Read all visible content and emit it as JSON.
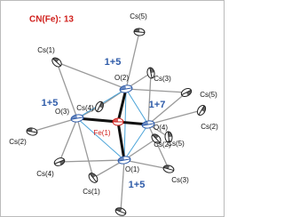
{
  "title": "CN(Fe): 13",
  "atoms": [
    {
      "label": "Fe(1)"
    },
    {
      "label": "O(1)"
    },
    {
      "label": "O(2)"
    },
    {
      "label": "O(3)"
    },
    {
      "label": "O(4)"
    },
    {
      "label": "Cs(5)"
    },
    {
      "label": "Cs(1)"
    },
    {
      "label": "Cs(3)"
    },
    {
      "label": "Cs(4)"
    },
    {
      "label": "Cs(5)"
    },
    {
      "label": "Cs(2)"
    },
    {
      "label": "Cs(2)"
    },
    {
      "label": "Cs(5)"
    },
    {
      "label": "Cs(2)"
    },
    {
      "label": "Cs(4)"
    },
    {
      "label": "Cs(3)"
    },
    {
      "label": "Cs(1)"
    }
  ],
  "bond_counts": [
    "1+5",
    "1+5",
    "1+7",
    "1+5"
  ]
}
